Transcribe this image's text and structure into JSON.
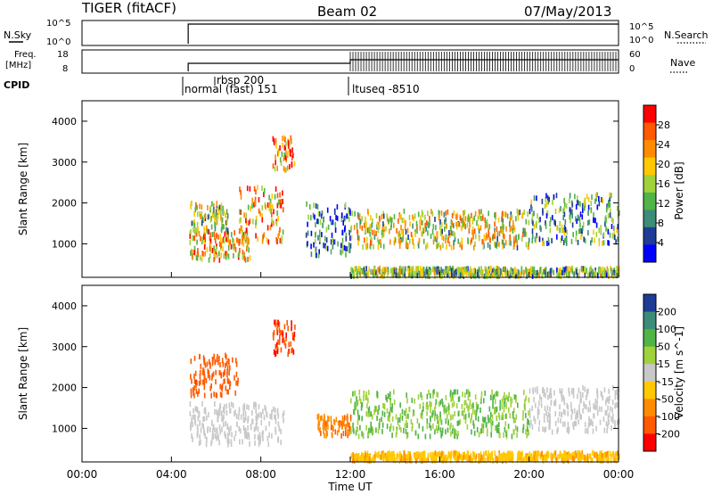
{
  "header": {
    "radar": "TIGER (fitACF)",
    "beam": "Beam 02",
    "date": "07/May/2013"
  },
  "noise_panel": {
    "left_label": "N.Sky",
    "right_label": "N.Search",
    "left_ticks": [
      "10^5",
      "10^0"
    ],
    "right_ticks": [
      "10^5",
      "10^0"
    ]
  },
  "freq_panel": {
    "left_label_line1": "Freq.",
    "left_label_line2": "[MHz]",
    "right_label": "Nave",
    "left_ticks": [
      "18",
      "8"
    ],
    "right_ticks": [
      "60",
      "0"
    ]
  },
  "cpid": {
    "label": "CPID",
    "programs": [
      "rbsp 200",
      "normal (fast) 151",
      "ltuseq -8510"
    ]
  },
  "colors": {
    "red": "#ff0000",
    "orange_red": "#ff5a00",
    "orange": "#ff8c00",
    "yellow": "#ffc800",
    "lime": "#a0d23c",
    "green": "#50b446",
    "teal": "#3c8c78",
    "navy": "#1e3c96",
    "blue": "#0000ff",
    "grey": "#c8c8c8"
  },
  "chart_data": [
    {
      "type": "heatmap",
      "name": "power",
      "xlabel": "Time UT",
      "ylabel": "Slant Range [km]",
      "xlim": [
        0,
        24
      ],
      "ylim": [
        180,
        4500
      ],
      "xticks": [
        "00:00",
        "04:00",
        "08:00",
        "12:00",
        "16:00",
        "20:00",
        "00:00"
      ],
      "yticks": [
        1000,
        2000,
        3000,
        4000
      ],
      "colorbar": {
        "label": "Power [dB]",
        "ticks": [
          "28",
          "24",
          "20",
          "16",
          "12",
          "8",
          "4"
        ],
        "colors": [
          "#ff0000",
          "#ff5a00",
          "#ff8c00",
          "#ffc800",
          "#a0d23c",
          "#50b446",
          "#3c8c78",
          "#1e3c96",
          "#0000ff"
        ]
      },
      "regions": [
        {
          "t": [
            4.8,
            7.5
          ],
          "r": [
            600,
            1300
          ],
          "level": 20
        },
        {
          "t": [
            4.8,
            6.5
          ],
          "r": [
            1300,
            2000
          ],
          "level": 14
        },
        {
          "t": [
            7.0,
            9.0
          ],
          "r": [
            1000,
            2400
          ],
          "level": 22
        },
        {
          "t": [
            8.5,
            9.5
          ],
          "r": [
            2800,
            3600
          ],
          "level": 24
        },
        {
          "t": [
            10.0,
            12.0
          ],
          "r": [
            700,
            2000
          ],
          "level": 6
        },
        {
          "t": [
            12.0,
            20.0
          ],
          "r": [
            900,
            1800
          ],
          "level": 16
        },
        {
          "t": [
            20.0,
            24.0
          ],
          "r": [
            1000,
            2200
          ],
          "level": 9
        },
        {
          "t": [
            12.0,
            24.0
          ],
          "r": [
            200,
            400
          ],
          "level": 12
        }
      ]
    },
    {
      "type": "heatmap",
      "name": "velocity",
      "xlabel": "Time UT",
      "ylabel": "Slant Range [km]",
      "xlim": [
        0,
        24
      ],
      "ylim": [
        180,
        4500
      ],
      "xticks": [
        "00:00",
        "04:00",
        "08:00",
        "12:00",
        "16:00",
        "20:00",
        "00:00"
      ],
      "yticks": [
        1000,
        2000,
        3000,
        4000
      ],
      "colorbar": {
        "label": "Velocity [m s^-1]",
        "ticks": [
          "200",
          "100",
          "50",
          "15",
          "-15",
          "-50",
          "-100",
          "-200"
        ],
        "colors": [
          "#1e3c96",
          "#3c8c78",
          "#50b446",
          "#a0d23c",
          "#c8c8c8",
          "#ffc800",
          "#ff8c00",
          "#ff5a00",
          "#ff0000"
        ]
      },
      "regions": [
        {
          "t": [
            4.8,
            9.0
          ],
          "r": [
            600,
            1600
          ],
          "level": 0
        },
        {
          "t": [
            4.8,
            7.0
          ],
          "r": [
            1800,
            2800
          ],
          "level": -150
        },
        {
          "t": [
            8.5,
            9.5
          ],
          "r": [
            2800,
            3600
          ],
          "level": -180
        },
        {
          "t": [
            10.5,
            12.0
          ],
          "r": [
            800,
            1300
          ],
          "level": -80
        },
        {
          "t": [
            12.0,
            20.0
          ],
          "r": [
            800,
            1900
          ],
          "level": 30
        },
        {
          "t": [
            20.0,
            24.0
          ],
          "r": [
            900,
            2000
          ],
          "level": 0
        },
        {
          "t": [
            12.0,
            24.0
          ],
          "r": [
            200,
            400
          ],
          "level": -40
        }
      ]
    }
  ],
  "time_axis_label": "Time UT"
}
